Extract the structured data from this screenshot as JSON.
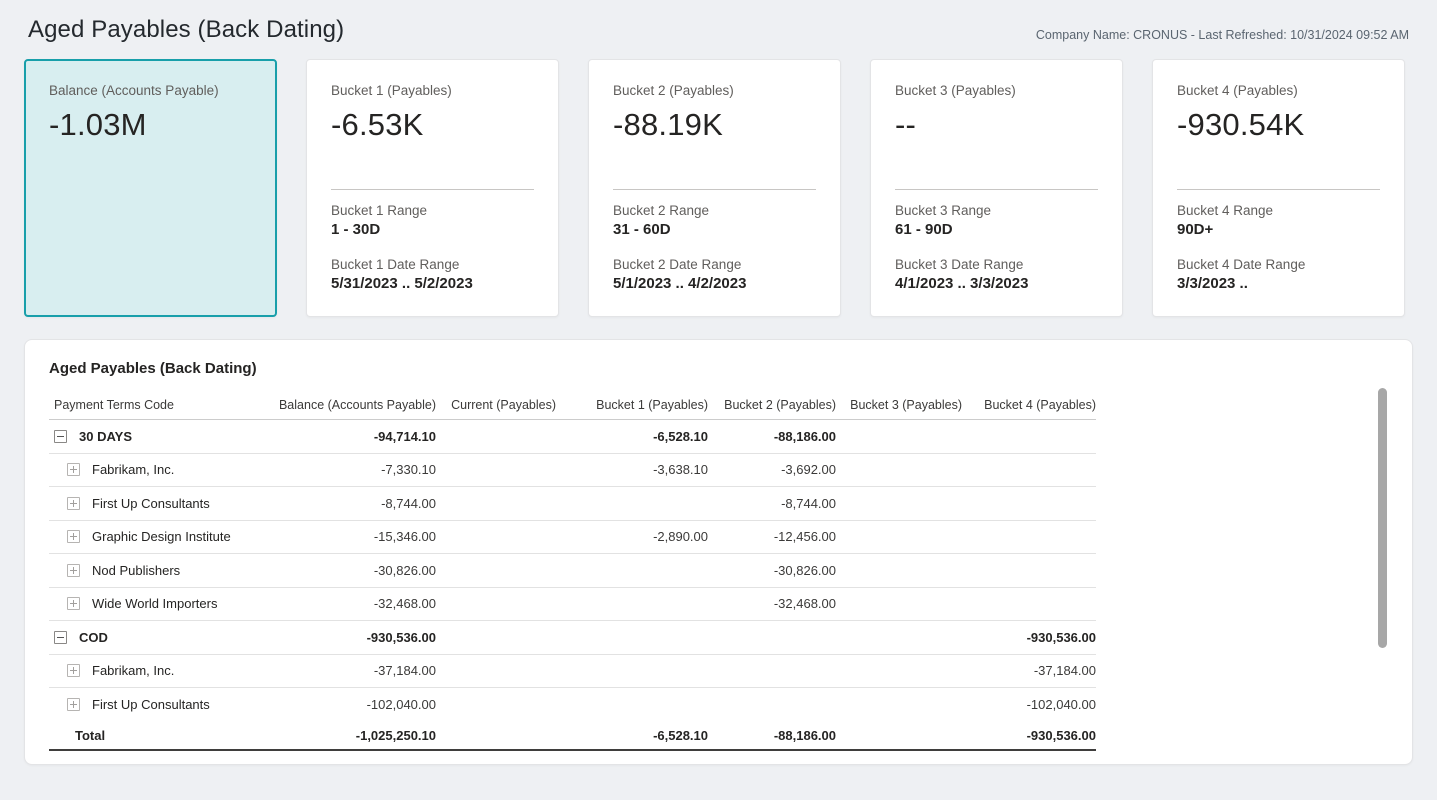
{
  "page": {
    "title": "Aged Payables (Back Dating)",
    "company_info": "Company Name: CRONUS - Last Refreshed: 10/31/2024 09:52 AM"
  },
  "colors": {
    "accent_teal": "#189faa",
    "selected_card_bg": "#d8eef0",
    "page_bg": "#eef0f3",
    "card_bg": "#ffffff"
  },
  "kpi_cards": [
    {
      "id": "balance",
      "label": "Balance (Accounts Payable)",
      "value": "-1.03M",
      "selected": true
    },
    {
      "id": "bucket1",
      "label": "Bucket 1 (Payables)",
      "value": "-6.53K",
      "selected": false,
      "range_label": "Bucket 1 Range",
      "range_value": "1 - 30D",
      "date_label": "Bucket 1 Date Range",
      "date_value": "5/31/2023 .. 5/2/2023"
    },
    {
      "id": "bucket2",
      "label": "Bucket 2 (Payables)",
      "value": "-88.19K",
      "selected": false,
      "range_label": "Bucket 2 Range",
      "range_value": "31 - 60D",
      "date_label": "Bucket 2 Date Range",
      "date_value": "5/1/2023 .. 4/2/2023"
    },
    {
      "id": "bucket3",
      "label": "Bucket 3 (Payables)",
      "value": "--",
      "selected": false,
      "range_label": "Bucket 3 Range",
      "range_value": "61 - 90D",
      "date_label": "Bucket 3 Date Range",
      "date_value": "4/1/2023 .. 3/3/2023"
    },
    {
      "id": "bucket4",
      "label": "Bucket 4 (Payables)",
      "value": "-930.54K",
      "selected": false,
      "range_label": "Bucket 4 Range",
      "range_value": "90D+",
      "date_label": "Bucket 4 Date Range",
      "date_value": "3/3/2023 .."
    }
  ],
  "table": {
    "title": "Aged Payables (Back Dating)",
    "columns": [
      "Payment Terms Code",
      "Balance (Accounts Payable)",
      "Current (Payables)",
      "Bucket 1 (Payables)",
      "Bucket 2 (Payables)",
      "Bucket 3 (Payables)",
      "Bucket 4 (Payables)"
    ],
    "rows": [
      {
        "group": true,
        "icon": "collapse",
        "label": "30 DAYS",
        "values": [
          "-94,714.10",
          "",
          "-6,528.10",
          "-88,186.00",
          "",
          ""
        ]
      },
      {
        "group": false,
        "icon": "expand",
        "label": "Fabrikam, Inc.",
        "values": [
          "-7,330.10",
          "",
          "-3,638.10",
          "-3,692.00",
          "",
          ""
        ]
      },
      {
        "group": false,
        "icon": "expand",
        "label": "First Up Consultants",
        "values": [
          "-8,744.00",
          "",
          "",
          "-8,744.00",
          "",
          ""
        ]
      },
      {
        "group": false,
        "icon": "expand",
        "label": "Graphic Design Institute",
        "values": [
          "-15,346.00",
          "",
          "-2,890.00",
          "-12,456.00",
          "",
          ""
        ]
      },
      {
        "group": false,
        "icon": "expand",
        "label": "Nod Publishers",
        "values": [
          "-30,826.00",
          "",
          "",
          "-30,826.00",
          "",
          ""
        ]
      },
      {
        "group": false,
        "icon": "expand",
        "label": "Wide World Importers",
        "values": [
          "-32,468.00",
          "",
          "",
          "-32,468.00",
          "",
          ""
        ]
      },
      {
        "group": true,
        "icon": "collapse",
        "label": "COD",
        "values": [
          "-930,536.00",
          "",
          "",
          "",
          "",
          "-930,536.00"
        ]
      },
      {
        "group": false,
        "icon": "expand",
        "label": "Fabrikam, Inc.",
        "values": [
          "-37,184.00",
          "",
          "",
          "",
          "",
          "-37,184.00"
        ]
      },
      {
        "group": false,
        "icon": "expand",
        "label": "First Up Consultants",
        "values": [
          "-102,040.00",
          "",
          "",
          "",
          "",
          "-102,040.00"
        ]
      }
    ],
    "total": {
      "label": "Total",
      "values": [
        "-1,025,250.10",
        "",
        "-6,528.10",
        "-88,186.00",
        "",
        "-930,536.00"
      ]
    }
  }
}
